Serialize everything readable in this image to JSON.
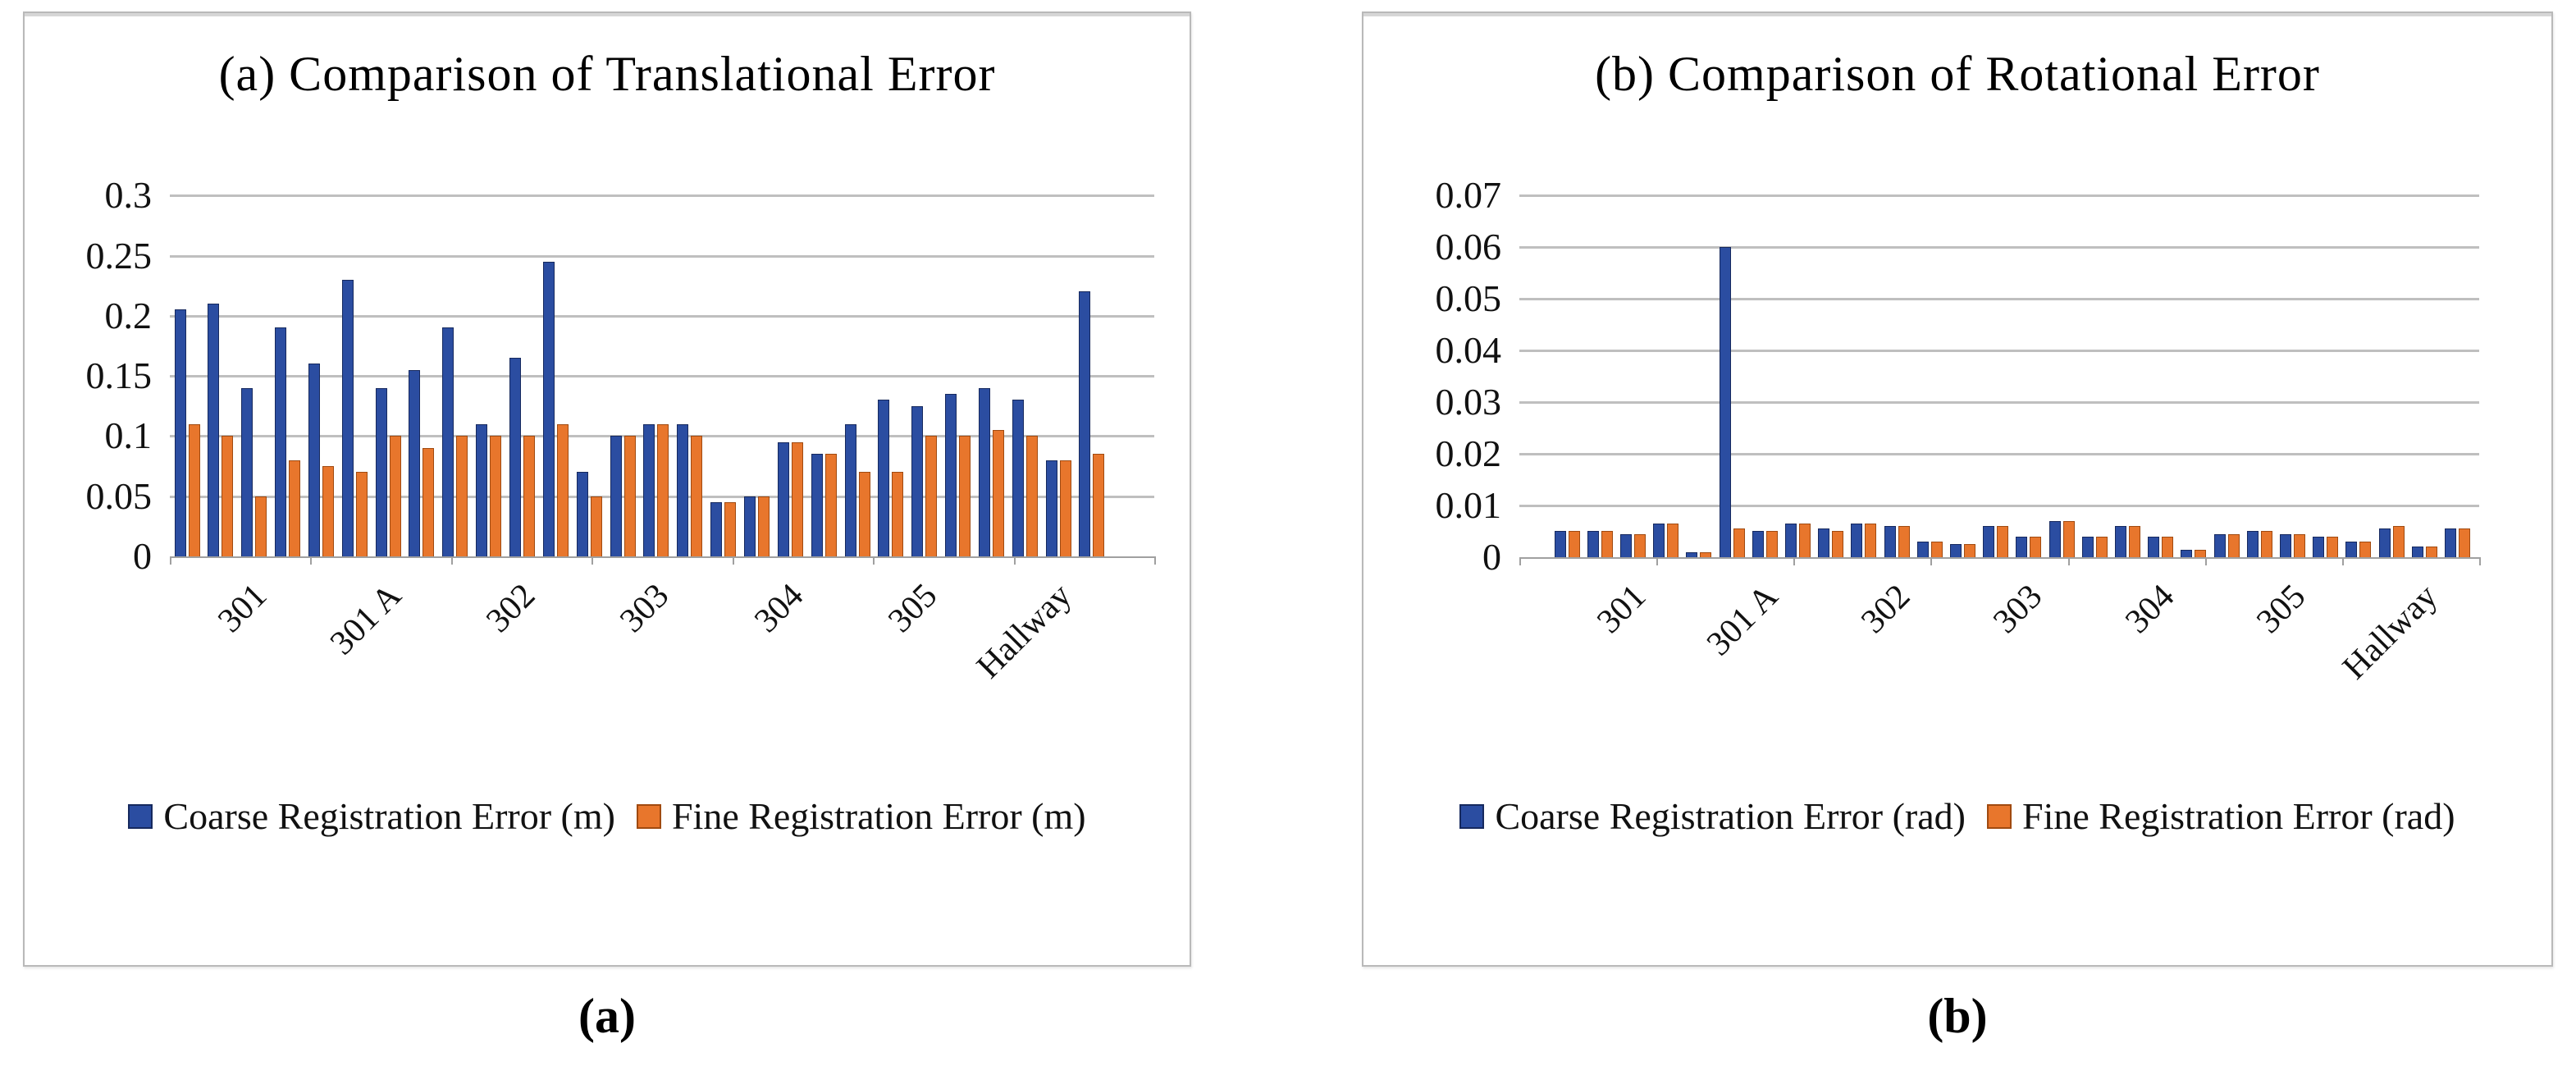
{
  "captions": {
    "a": "(a)",
    "b": "(b)"
  },
  "chart_data": [
    {
      "id": "a",
      "type": "bar",
      "title": "(a) Comparison of Translational Error",
      "categories": [
        "301",
        "301 A",
        "302",
        "303",
        "304",
        "305",
        "Hallway"
      ],
      "pairs_per_category": 4,
      "ylim": [
        0,
        0.3
      ],
      "ytick_labels": [
        "0",
        "0.05",
        "0.1",
        "0.15",
        "0.2",
        "0.25",
        "0.3"
      ],
      "grid": "horizontal",
      "legend_position": "bottom",
      "series": [
        {
          "name": "Coarse Registration Error (m)",
          "color": "#2b4da1",
          "border_color": "#16295e",
          "values": [
            0.205,
            0.21,
            0.14,
            0.19,
            0.16,
            0.23,
            0.14,
            0.155,
            0.19,
            0.11,
            0.165,
            0.245,
            0.07,
            0.1,
            0.11,
            0.11,
            0.045,
            0.05,
            0.095,
            0.085,
            0.11,
            0.13,
            0.125,
            0.135,
            0.14,
            0.13,
            0.08,
            0.22
          ]
        },
        {
          "name": "Fine Registration Error (m)",
          "color": "#e8762c",
          "border_color": "#a04a10",
          "values": [
            0.11,
            0.1,
            0.05,
            0.08,
            0.075,
            0.07,
            0.1,
            0.09,
            0.1,
            0.1,
            0.1,
            0.11,
            0.05,
            0.1,
            0.11,
            0.1,
            0.045,
            0.05,
            0.095,
            0.085,
            0.07,
            0.07,
            0.1,
            0.1,
            0.105,
            0.1,
            0.08,
            0.085
          ]
        }
      ]
    },
    {
      "id": "b",
      "type": "bar",
      "title": "(b) Comparison of Rotational Error",
      "categories": [
        "301",
        "301 A",
        "302",
        "303",
        "304",
        "305",
        "Hallway"
      ],
      "pairs_per_category": 4,
      "ylim": [
        0,
        0.07
      ],
      "ytick_labels": [
        "0",
        "0.01",
        "0.02",
        "0.03",
        "0.04",
        "0.05",
        "0.06",
        "0.07"
      ],
      "grid": "horizontal",
      "legend_position": "bottom",
      "series": [
        {
          "name": "Coarse Registration Error (rad)",
          "color": "#2b4da1",
          "border_color": "#16295e",
          "values": [
            0.005,
            0.005,
            0.0045,
            0.0065,
            0.001,
            0.06,
            0.005,
            0.0065,
            0.0055,
            0.0065,
            0.006,
            0.003,
            0.0025,
            0.006,
            0.004,
            0.007,
            0.004,
            0.006,
            0.004,
            0.0015,
            0.0045,
            0.005,
            0.0045,
            0.004,
            0.003,
            0.0055,
            0.002,
            0.0055
          ]
        },
        {
          "name": "Fine Registration Error (rad)",
          "color": "#e8762c",
          "border_color": "#a04a10",
          "values": [
            0.005,
            0.005,
            0.0045,
            0.0065,
            0.001,
            0.0055,
            0.005,
            0.0065,
            0.005,
            0.0065,
            0.006,
            0.003,
            0.0025,
            0.006,
            0.004,
            0.007,
            0.004,
            0.006,
            0.004,
            0.0015,
            0.0045,
            0.005,
            0.0045,
            0.004,
            0.003,
            0.006,
            0.002,
            0.0055
          ]
        }
      ]
    }
  ]
}
